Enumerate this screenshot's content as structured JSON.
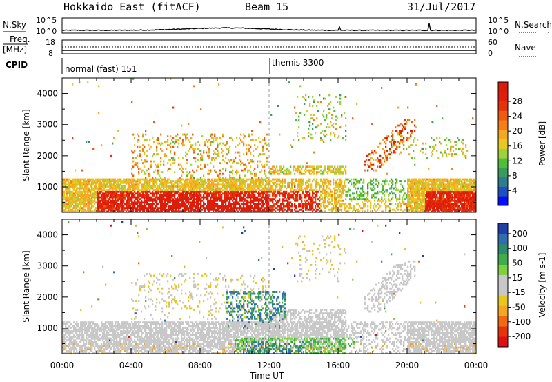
{
  "header": {
    "title": "Hokkaido East (fitACF)",
    "beam": "Beam 15",
    "date": "31/Jul/2017"
  },
  "strip": {
    "nsky_label": "N.Sky",
    "nsky_ticks": [
      "10^5",
      "10^0"
    ],
    "nsearch_label": "N.Search",
    "nsearch_ticks": [
      "10^5",
      "10^0"
    ],
    "freq_label": "Freq.",
    "freq_unit": "[MHz]",
    "freq_ticks": [
      "18",
      "8"
    ],
    "nave_label": "Nave",
    "nave_ticks": [
      "60",
      "0"
    ],
    "cpid_label": "CPID",
    "cpid_segments": [
      {
        "name": "normal (fast) 151",
        "start_hour": 0
      },
      {
        "name": "themis 3300",
        "start_hour": 12
      }
    ]
  },
  "chart_data": [
    {
      "type": "heatmap",
      "name": "power",
      "ylabel": "Slant Range [km]",
      "yticks": [
        1000,
        2000,
        3000,
        4000
      ],
      "ylim": [
        180,
        4500
      ],
      "xlim": [
        0,
        24
      ],
      "colorbar": {
        "label": "Power [dB]",
        "ticks": [
          "4",
          "8",
          "12",
          "16",
          "20",
          "24",
          "28"
        ],
        "colors": [
          "#0010ff",
          "#1f4fc0",
          "#2e7d8e",
          "#3b9a5e",
          "#4fbf3a",
          "#9fd23a",
          "#e8c81f",
          "#f5a623",
          "#f57f17",
          "#ef5a12",
          "#e6330a",
          "#e01e0a",
          "#d81e0a"
        ]
      }
    },
    {
      "type": "heatmap",
      "name": "velocity",
      "ylabel": "Slant Range [km]",
      "yticks": [
        1000,
        2000,
        3000,
        4000
      ],
      "ylim": [
        180,
        4500
      ],
      "xlim": [
        0,
        24
      ],
      "colorbar": {
        "label": "Velocity [m s-1]",
        "ticks": [
          "200",
          "100",
          "50",
          "15",
          "-15",
          "-50",
          "-100",
          "-200"
        ],
        "colors": [
          "#1f3fa8",
          "#2e6db0",
          "#2e8a6a",
          "#3fae4a",
          "#7fd040",
          "#c8c8c8",
          "#c8c8c8",
          "#e8c81f",
          "#f5a623",
          "#ef6a12",
          "#e6330a",
          "#e01010"
        ]
      }
    }
  ],
  "xaxis": {
    "label": "Time UT",
    "ticks": [
      "00:00",
      "04:00",
      "08:00",
      "12:00",
      "16:00",
      "20:00",
      "00:00"
    ]
  }
}
